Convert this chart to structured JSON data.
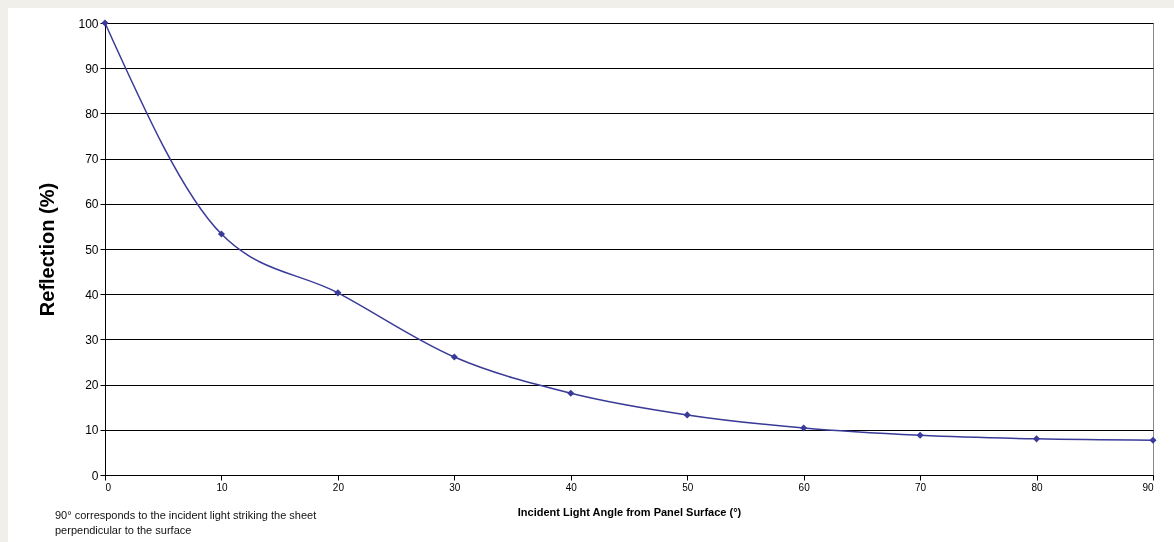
{
  "chart_data": {
    "type": "line",
    "xlabel": "Incident Light Angle from Panel Surface (°)",
    "ylabel": "Reflection (%)",
    "annotations": [
      "90° corresponds to the incident light striking the sheet perpendicular to the surface"
    ],
    "x": [
      0,
      10,
      20,
      30,
      40,
      50,
      60,
      70,
      80,
      90
    ],
    "series": [
      {
        "color": "#3a3a98",
        "values": [
          100,
          53.3,
          40.3,
          26.1,
          18.1,
          13.3,
          10.4,
          8.8,
          8.0,
          7.7
        ]
      }
    ],
    "xlim": [
      0,
      90
    ],
    "xticks": [
      0,
      10,
      20,
      30,
      40,
      50,
      60,
      70,
      80,
      90
    ],
    "ylim": [
      0,
      100
    ],
    "yticks": [
      0,
      10,
      20,
      30,
      40,
      50,
      60,
      70,
      80,
      90,
      100
    ],
    "grid": "y",
    "marker": "diamond",
    "line_style": "solid"
  }
}
